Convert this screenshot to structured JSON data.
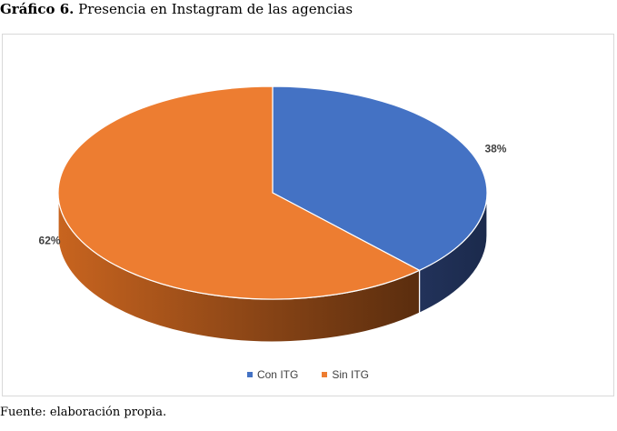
{
  "caption": {
    "label": "Gráfico 6.",
    "text": "Presencia en Instagram de las agencias"
  },
  "source": "Fuente: elaboración propia.",
  "chart_data": {
    "type": "pie",
    "style": "3d",
    "categories": [
      "Con ITG",
      "Sin ITG"
    ],
    "values": [
      38,
      62
    ],
    "data_labels": [
      "38%",
      "62%"
    ],
    "colors": [
      "#4472c4",
      "#ed7d31"
    ],
    "legend": {
      "position": "bottom",
      "entries": [
        "Con ITG",
        "Sin ITG"
      ]
    }
  }
}
